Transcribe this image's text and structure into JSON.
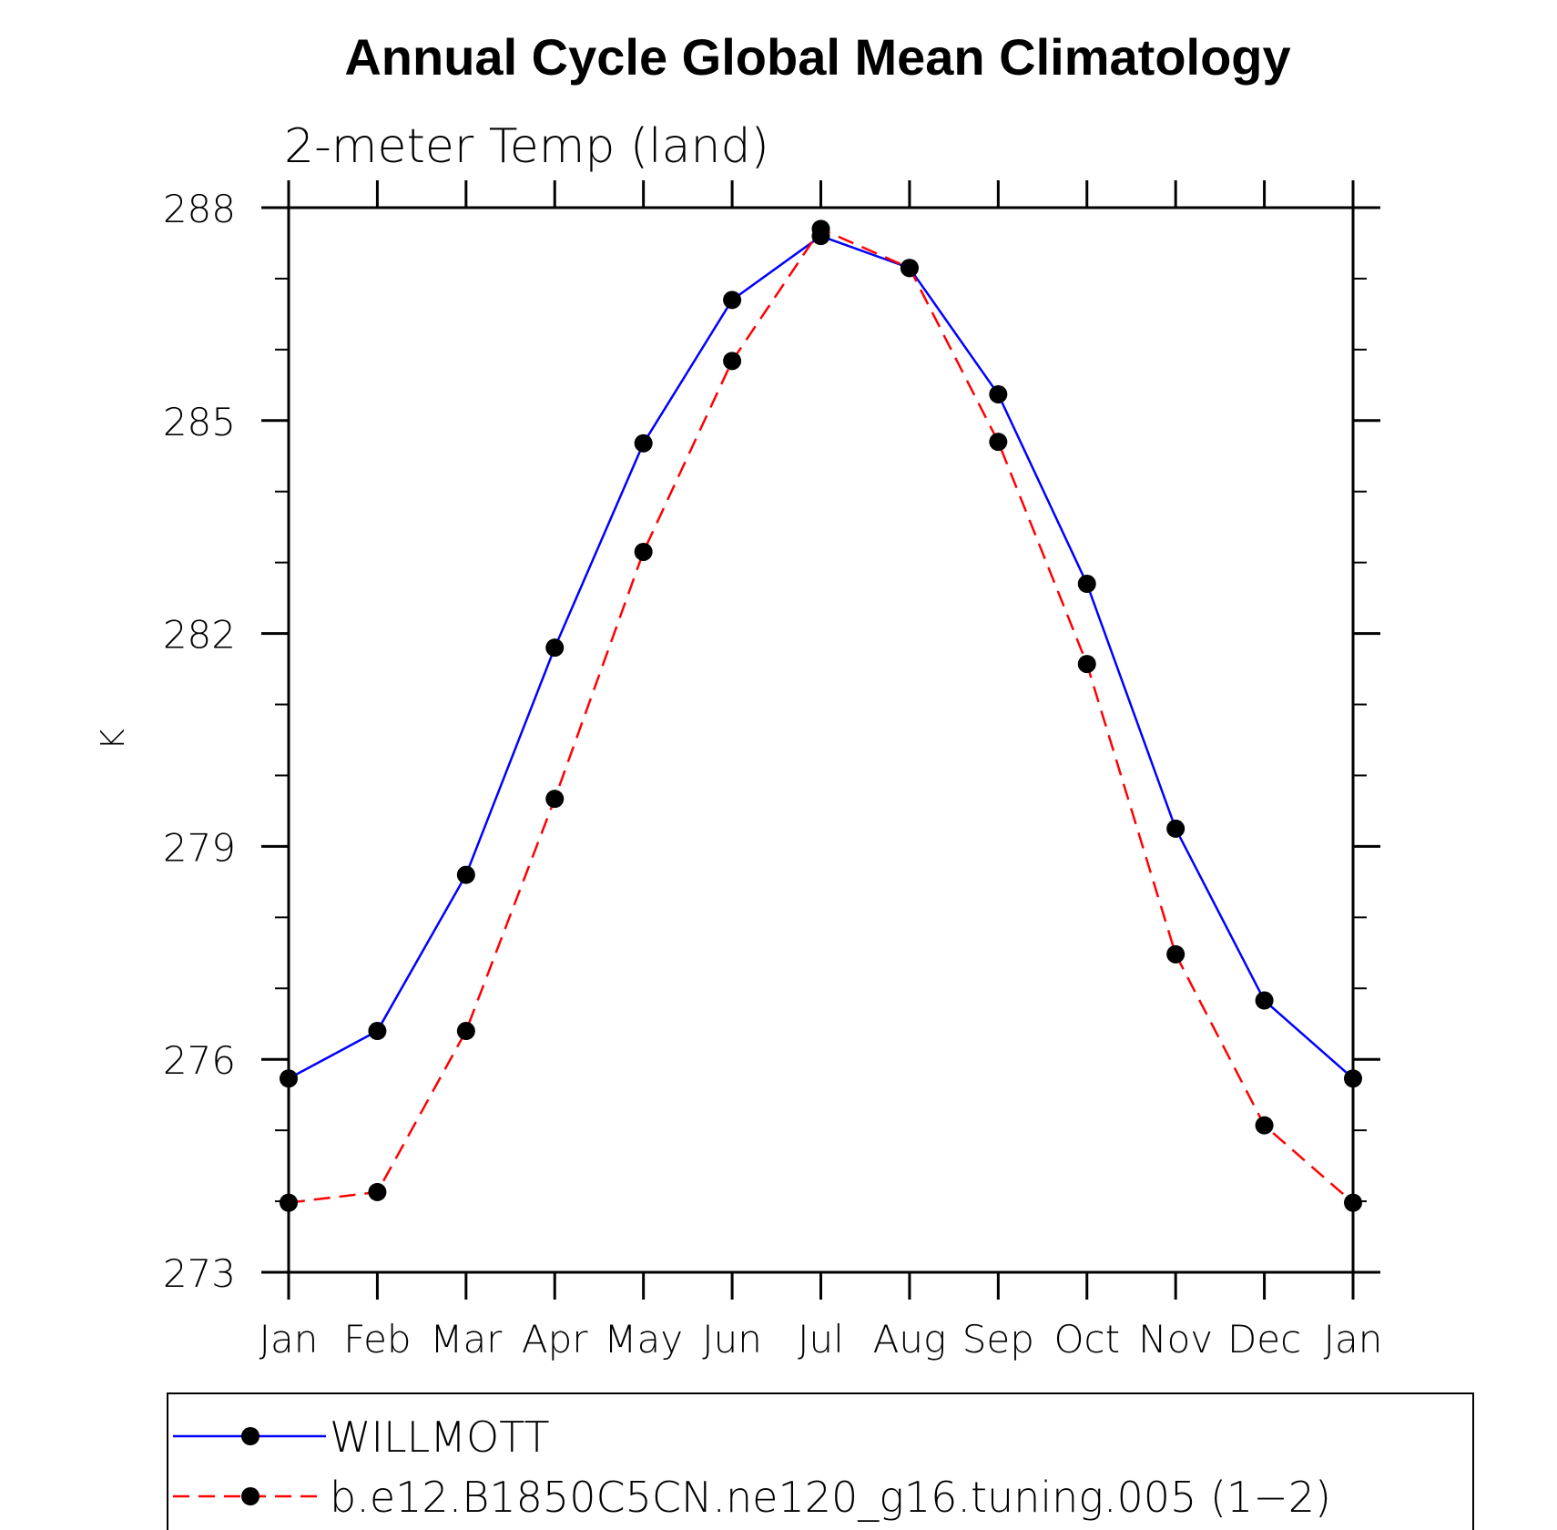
{
  "chart_data": {
    "type": "line",
    "title": "Annual Cycle Global Mean Climatology",
    "subtitle": "2-meter Temp (land)",
    "xlabel": "",
    "ylabel": "K",
    "categories": [
      "Jan",
      "Feb",
      "Mar",
      "Apr",
      "May",
      "Jun",
      "Jul",
      "Aug",
      "Sep",
      "Oct",
      "Nov",
      "Dec",
      "Jan"
    ],
    "ylim": [
      273,
      288
    ],
    "yticks": [
      273,
      276,
      279,
      282,
      285,
      288
    ],
    "yticks_minor_step": 1,
    "grid": false,
    "legend_position": "bottom",
    "series": [
      {
        "name": "WILLMOTT",
        "color": "#0000ff",
        "dash": "solid",
        "values": [
          275.73,
          276.4,
          278.6,
          281.8,
          284.68,
          286.7,
          287.6,
          287.15,
          285.37,
          282.7,
          279.25,
          276.83,
          275.73
        ]
      },
      {
        "name": "b.e12.B1850C5CN.ne120_g16.tuning.005 (1−2)",
        "color": "#ff0000",
        "dash": "dashed",
        "values": [
          273.98,
          274.13,
          276.4,
          279.67,
          283.15,
          285.84,
          287.7,
          287.15,
          284.7,
          281.57,
          277.48,
          275.07,
          273.98
        ]
      }
    ]
  }
}
